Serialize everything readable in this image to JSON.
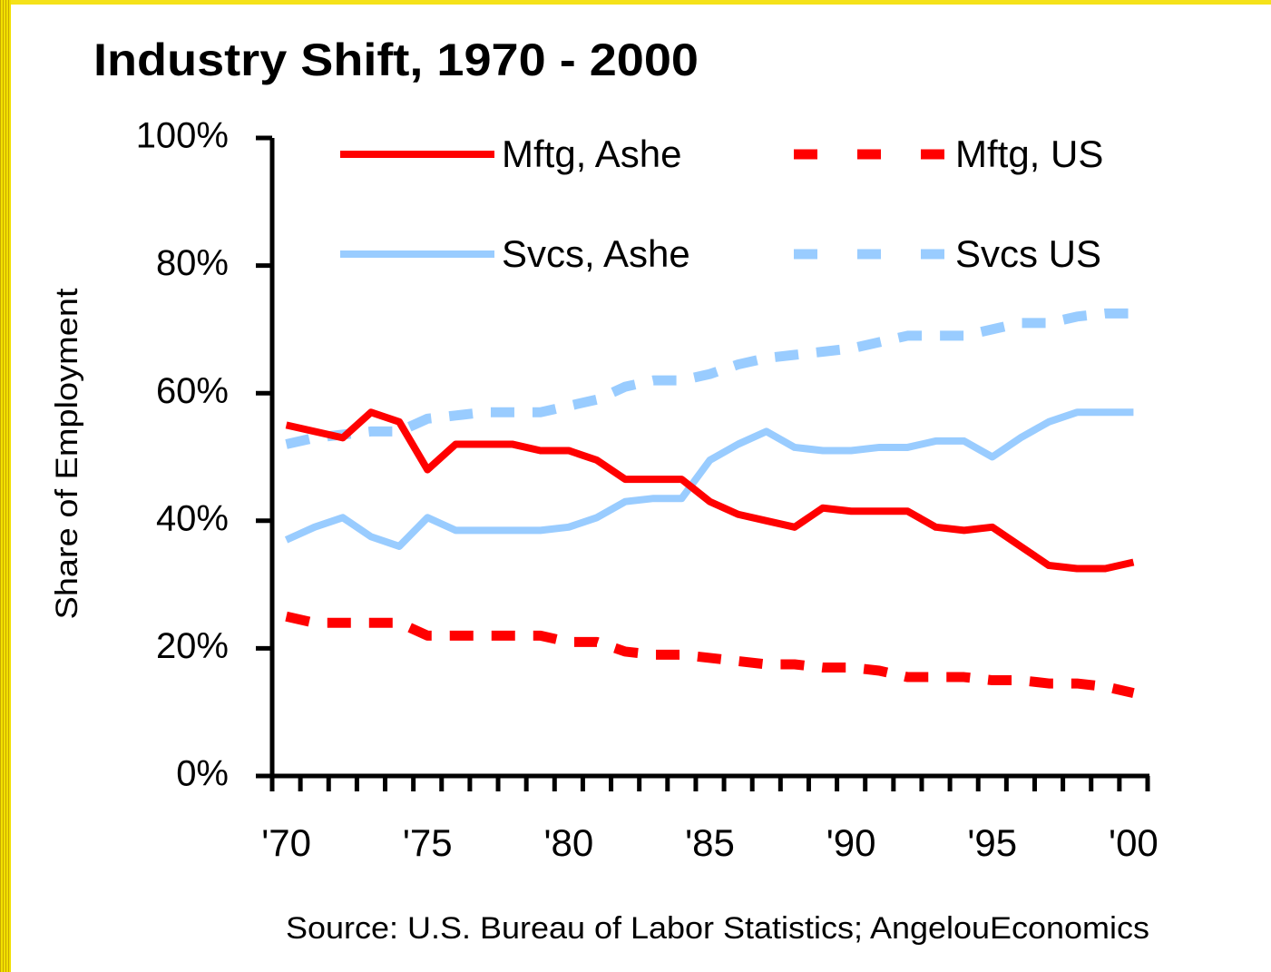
{
  "chart_data": {
    "type": "line",
    "title": "Industry Shift, 1970 - 2000",
    "y_label": "Share of Employment",
    "source": "Source: U.S. Bureau of Labor Statistics; AngelouEconomics",
    "categories": [
      "'70",
      null,
      null,
      null,
      null,
      "'75",
      null,
      null,
      null,
      null,
      "'80",
      null,
      null,
      null,
      null,
      "'85",
      null,
      null,
      null,
      null,
      "'90",
      null,
      null,
      null,
      null,
      "'95",
      null,
      null,
      null,
      null,
      "'00"
    ],
    "ylim": [
      0,
      100
    ],
    "yticks": [
      {
        "value": 0,
        "label": "0%"
      },
      {
        "value": 20,
        "label": "20%"
      },
      {
        "value": 40,
        "label": "40%"
      },
      {
        "value": 60,
        "label": "60%"
      },
      {
        "value": 80,
        "label": "80%"
      },
      {
        "value": 100,
        "label": "100%"
      }
    ],
    "series": [
      {
        "name": "Mftg, Ashe",
        "color": "#ff0000",
        "dashed": false,
        "values": [
          55,
          54,
          53,
          57,
          55.5,
          48,
          52,
          52,
          52,
          51,
          51,
          49.5,
          46.5,
          46.5,
          46.5,
          43,
          41,
          40,
          39,
          42,
          41.5,
          41.5,
          41.5,
          39,
          38.5,
          39,
          36,
          33,
          32.5,
          32.5,
          33.5
        ]
      },
      {
        "name": "Mftg, US",
        "color": "#ff0000",
        "dashed": true,
        "values": [
          25,
          24,
          24,
          24,
          24,
          22,
          22,
          22,
          22,
          22,
          21,
          21,
          19.5,
          19,
          19,
          18.5,
          18,
          17.5,
          17.5,
          17,
          17,
          16.5,
          15.5,
          15.5,
          15.5,
          15,
          15,
          14.5,
          14.5,
          14,
          13
        ]
      },
      {
        "name": "Svcs, Ashe",
        "color": "#99ccff",
        "dashed": false,
        "values": [
          37,
          39,
          40.5,
          37.5,
          36,
          40.5,
          38.5,
          38.5,
          38.5,
          38.5,
          39,
          40.5,
          43,
          43.5,
          43.5,
          49.5,
          52,
          54,
          51.5,
          51,
          51,
          51.5,
          51.5,
          52.5,
          52.5,
          50,
          53,
          55.5,
          57,
          57,
          57
        ]
      },
      {
        "name": "Svcs US",
        "color": "#99ccff",
        "dashed": true,
        "values": [
          52,
          53,
          53.5,
          54,
          54,
          56,
          56.5,
          57,
          57,
          57,
          58,
          59,
          61,
          62,
          62,
          63,
          64.5,
          65.5,
          66,
          66.5,
          67,
          68,
          69,
          69,
          69,
          70,
          71,
          71,
          72,
          72.5,
          72.5
        ]
      }
    ]
  }
}
